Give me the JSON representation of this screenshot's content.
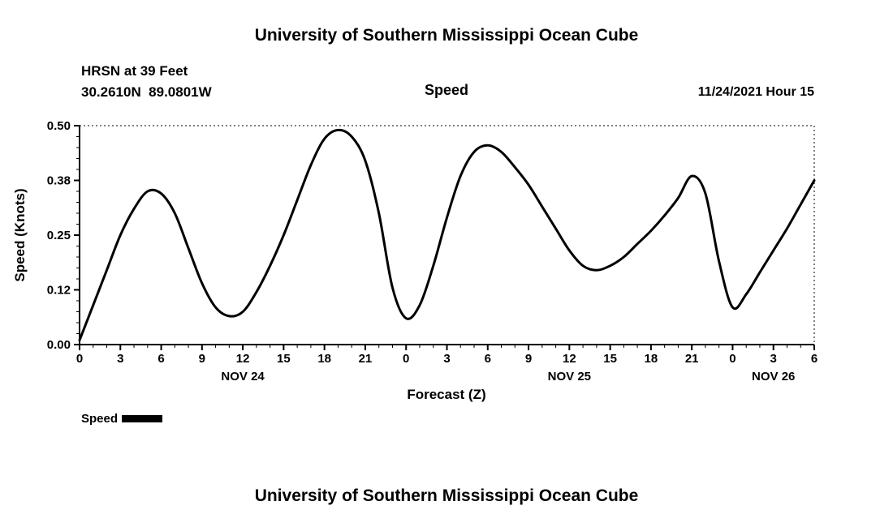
{
  "page": {
    "top_title": "University of Southern Mississippi Ocean Cube",
    "bottom_title": "University of Southern Mississippi Ocean Cube"
  },
  "header": {
    "station": "HRSN at 39 Feet",
    "coords": "30.2610N  89.0801W",
    "run": "11/24/2021 Hour 15"
  },
  "chart_data": {
    "type": "line",
    "title": "Speed",
    "xlabel": "Forecast (Z)",
    "ylabel": "Speed (Knots)",
    "xlim": [
      0,
      54
    ],
    "ylim": [
      0,
      0.5
    ],
    "grid": "top-and-right-dotted-frame",
    "line_color": "#000000",
    "y_ticks": [
      {
        "v": 0.0,
        "label": "0.00"
      },
      {
        "v": 0.125,
        "label": "0.12"
      },
      {
        "v": 0.25,
        "label": "0.25"
      },
      {
        "v": 0.375,
        "label": "0.38"
      },
      {
        "v": 0.5,
        "label": "0.50"
      }
    ],
    "x_ticks": [
      {
        "x": 0,
        "label": "0"
      },
      {
        "x": 3,
        "label": "3"
      },
      {
        "x": 6,
        "label": "6"
      },
      {
        "x": 9,
        "label": "9"
      },
      {
        "x": 12,
        "label": "12"
      },
      {
        "x": 15,
        "label": "15"
      },
      {
        "x": 18,
        "label": "18"
      },
      {
        "x": 21,
        "label": "21"
      },
      {
        "x": 24,
        "label": "0"
      },
      {
        "x": 27,
        "label": "3"
      },
      {
        "x": 30,
        "label": "6"
      },
      {
        "x": 33,
        "label": "9"
      },
      {
        "x": 36,
        "label": "12"
      },
      {
        "x": 39,
        "label": "15"
      },
      {
        "x": 42,
        "label": "18"
      },
      {
        "x": 45,
        "label": "21"
      },
      {
        "x": 48,
        "label": "0"
      },
      {
        "x": 51,
        "label": "3"
      },
      {
        "x": 54,
        "label": "6"
      }
    ],
    "day_labels": [
      {
        "x": 12,
        "label": "NOV 24"
      },
      {
        "x": 36,
        "label": "NOV 25"
      },
      {
        "x": 51,
        "label": "NOV 26"
      }
    ],
    "legend": [
      {
        "name": "Speed",
        "color": "#000000"
      }
    ],
    "series": [
      {
        "name": "Speed",
        "x": [
          0,
          1,
          2,
          3,
          4,
          5,
          6,
          7,
          8,
          9,
          10,
          11,
          12,
          13,
          14,
          15,
          16,
          17,
          18,
          19,
          20,
          21,
          22,
          23,
          24,
          25,
          26,
          27,
          28,
          29,
          30,
          31,
          32,
          33,
          34,
          35,
          36,
          37,
          38,
          39,
          40,
          41,
          42,
          43,
          44,
          45,
          46,
          47,
          48,
          49,
          50,
          51,
          52,
          53,
          54
        ],
        "values": [
          0.01,
          0.09,
          0.17,
          0.25,
          0.31,
          0.35,
          0.345,
          0.3,
          0.22,
          0.14,
          0.085,
          0.065,
          0.075,
          0.12,
          0.18,
          0.25,
          0.33,
          0.41,
          0.47,
          0.49,
          0.475,
          0.42,
          0.3,
          0.13,
          0.06,
          0.09,
          0.18,
          0.29,
          0.385,
          0.44,
          0.455,
          0.44,
          0.405,
          0.365,
          0.315,
          0.265,
          0.215,
          0.18,
          0.17,
          0.18,
          0.2,
          0.23,
          0.26,
          0.295,
          0.335,
          0.385,
          0.345,
          0.19,
          0.085,
          0.115,
          0.165,
          0.215,
          0.265,
          0.32,
          0.375
        ]
      }
    ]
  }
}
